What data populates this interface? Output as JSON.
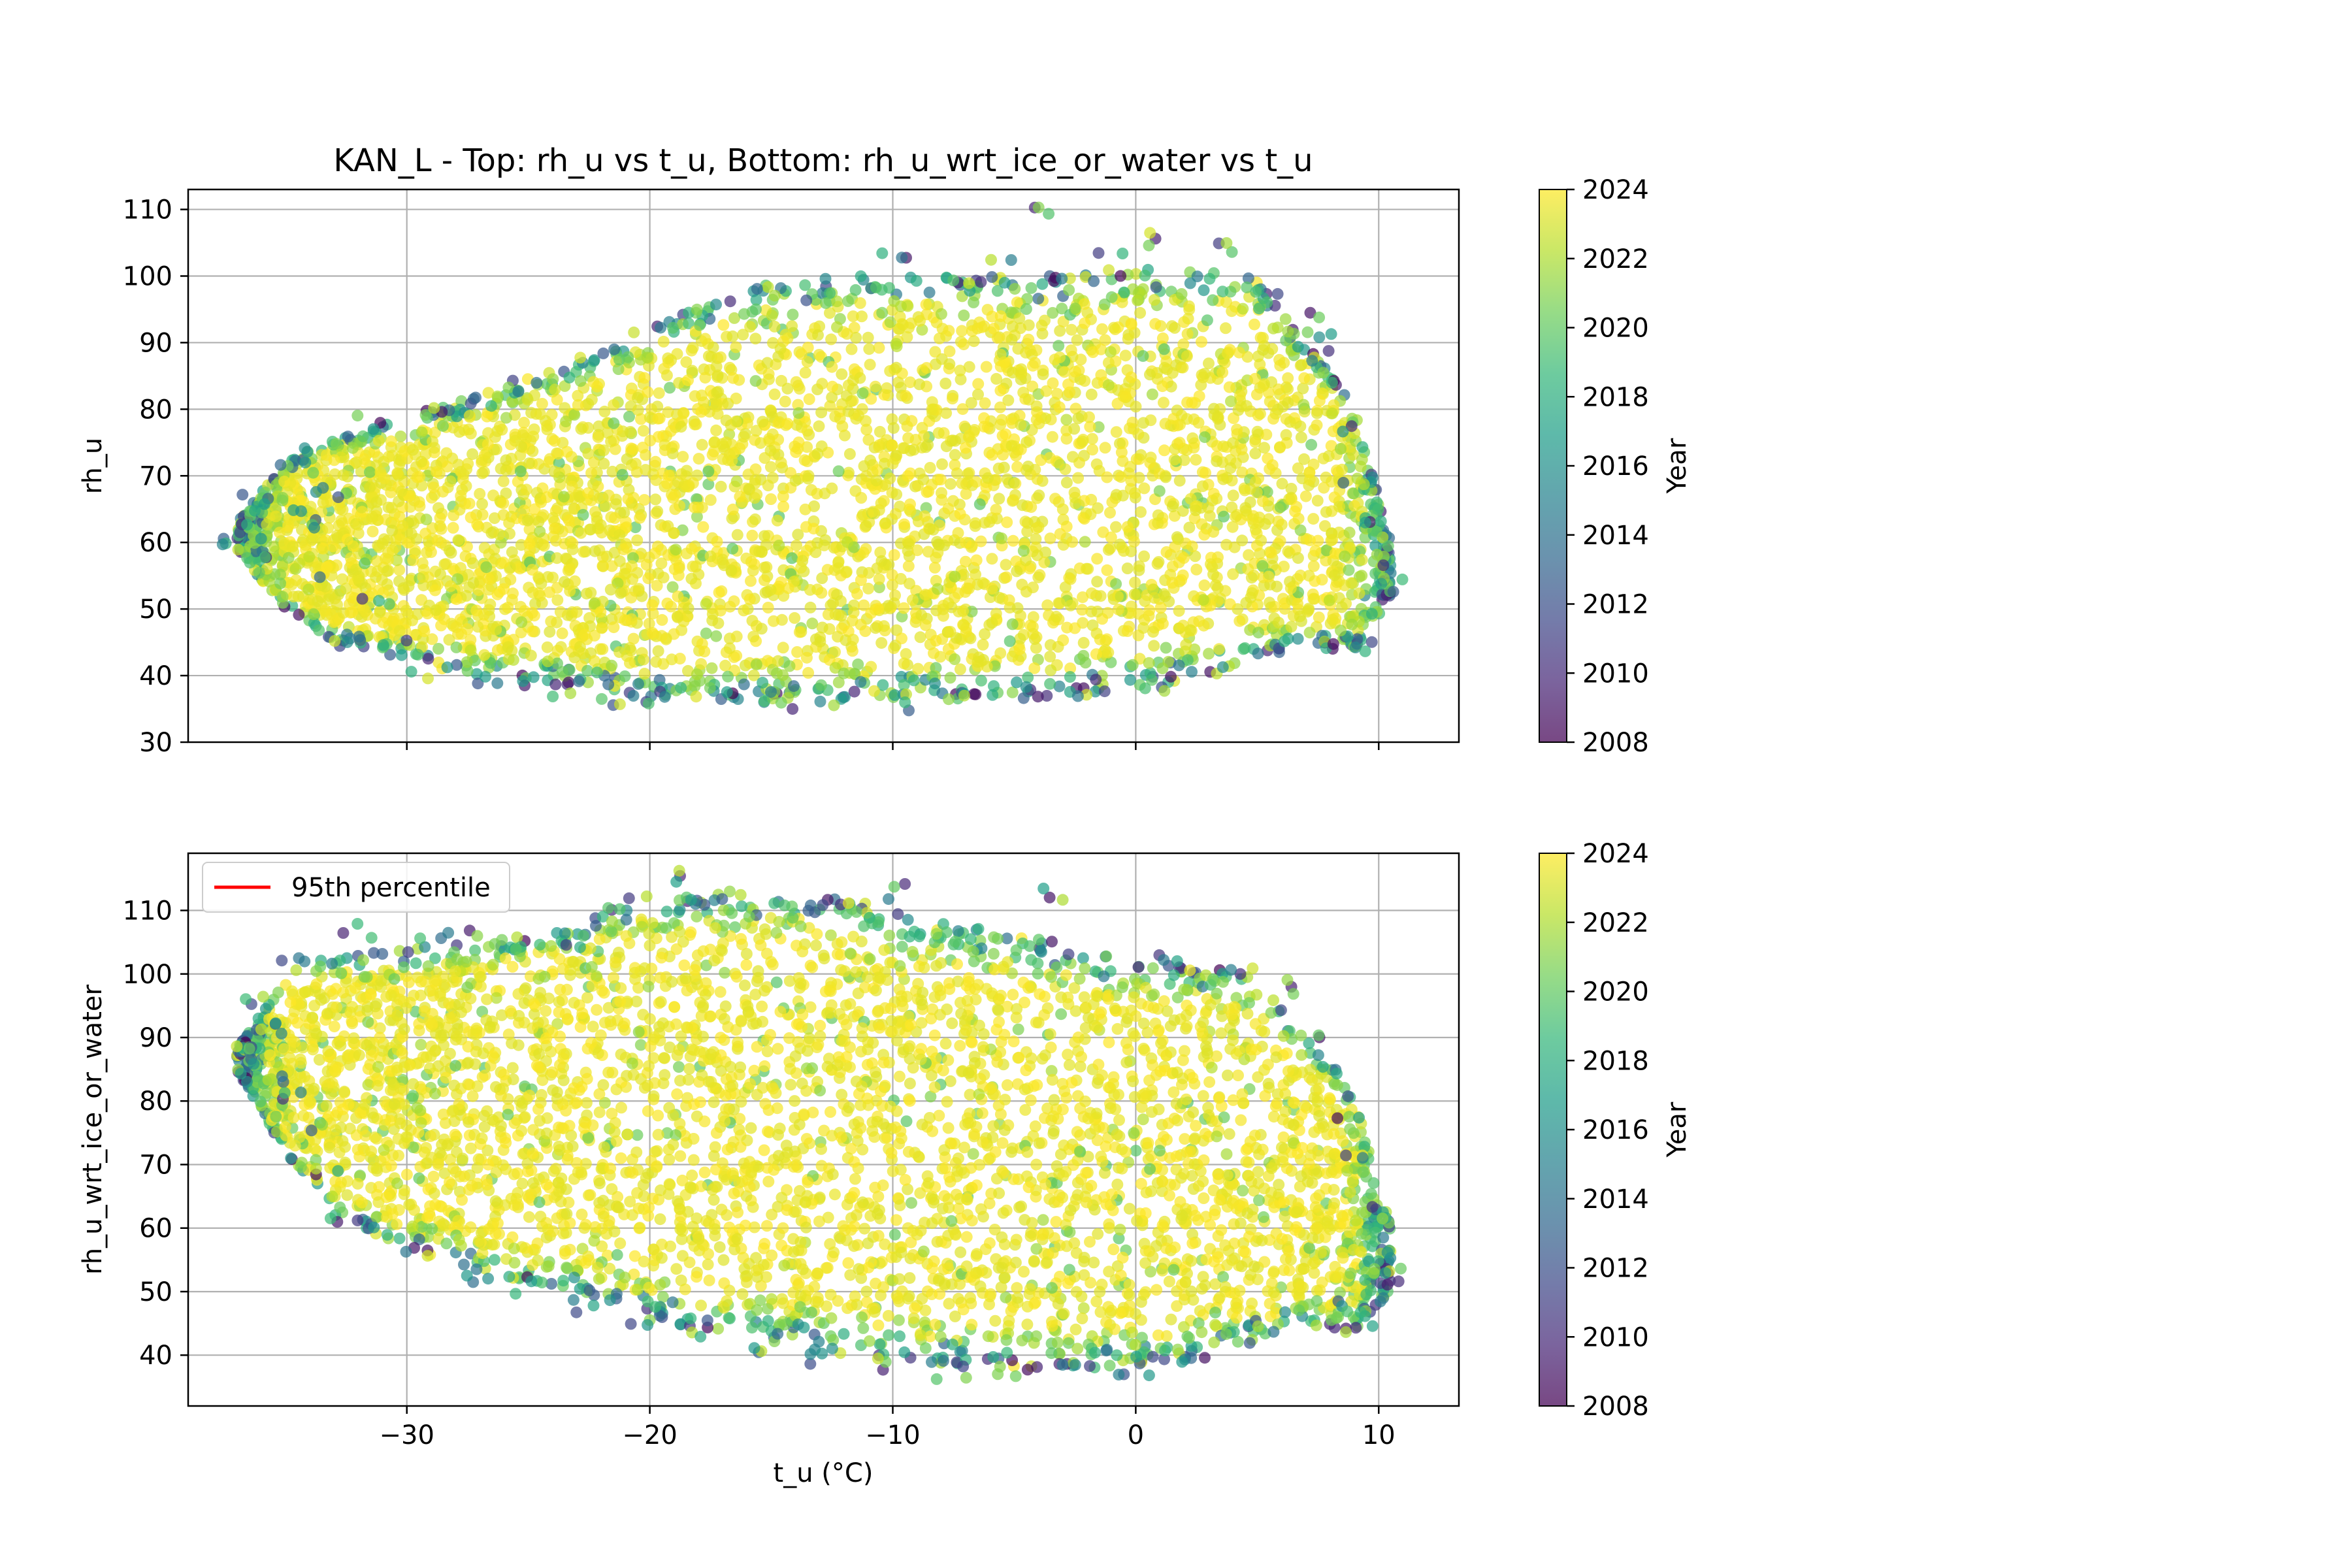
{
  "colormap": {
    "name": "viridis",
    "alpha": 0.7,
    "stops": [
      "#440154",
      "#482878",
      "#3e4989",
      "#31688e",
      "#26828e",
      "#1f9e89",
      "#35b779",
      "#6ece58",
      "#b5de2b",
      "#fde725"
    ]
  },
  "chart_data": [
    {
      "type": "scatter",
      "title": "KAN_L - Top: rh_u vs t_u, Bottom: rh_u_wrt_ice_or_water vs t_u",
      "xlabel": "",
      "ylabel": "rh_u",
      "xlim": [
        -39.0,
        13.3
      ],
      "ylim": [
        30,
        113
      ],
      "xticks": [
        -30,
        -20,
        -10,
        0,
        10
      ],
      "xtick_labels": [
        "",
        "",
        "",
        "",
        ""
      ],
      "yticks": [
        30,
        40,
        50,
        60,
        70,
        80,
        90,
        100,
        110
      ],
      "ytick_labels": [
        "30",
        "40",
        "50",
        "60",
        "70",
        "80",
        "90",
        "100",
        "110"
      ],
      "grid": true,
      "color_variable": "Year",
      "colorbar": {
        "label": "Year",
        "range": [
          2008,
          2024
        ],
        "ticks": [
          2008,
          2010,
          2012,
          2014,
          2016,
          2018,
          2020,
          2022,
          2024
        ],
        "tick_labels": [
          "2008",
          "2010",
          "2012",
          "2014",
          "2016",
          "2018",
          "2020",
          "2022",
          "2024"
        ]
      },
      "envelope_t": [
        -37,
        -35,
        -33,
        -30,
        -27,
        -24,
        -21,
        -18,
        -15,
        -12,
        -9,
        -6,
        -3,
        0,
        3,
        5,
        6.5,
        8,
        9,
        10.5
      ],
      "envelope_upper": [
        63,
        72,
        76,
        79,
        82,
        86,
        91,
        96,
        99,
        100,
        100,
        100,
        100,
        101,
        101,
        100,
        92,
        86,
        80,
        60
      ],
      "envelope_lower": [
        59,
        50,
        45,
        42,
        40,
        39,
        37,
        36,
        36,
        36,
        37,
        36,
        37,
        38,
        40,
        42,
        44,
        44,
        44,
        50
      ],
      "points": [
        [
          -37.2,
          61
        ],
        [
          -36.5,
          64
        ],
        [
          -35.8,
          58
        ],
        [
          -35.0,
          66
        ],
        [
          -34.4,
          62
        ],
        [
          -33.8,
          56
        ],
        [
          -33.2,
          68
        ],
        [
          -32.6,
          44
        ],
        [
          -32.0,
          46
        ],
        [
          -31.4,
          51
        ],
        [
          -30.5,
          44
        ],
        [
          -29.6,
          42
        ],
        [
          -28.4,
          41
        ],
        [
          -27.0,
          40
        ],
        [
          -25.2,
          39
        ],
        [
          -23.5,
          38
        ],
        [
          -21.8,
          37
        ],
        [
          -19.5,
          36
        ],
        [
          -17.0,
          37
        ],
        [
          -14.6,
          36
        ],
        [
          -12.0,
          37
        ],
        [
          -9.5,
          36
        ],
        [
          -7.0,
          37
        ],
        [
          -4.5,
          38
        ],
        [
          -2.0,
          38
        ],
        [
          0.5,
          39
        ],
        [
          3.0,
          40
        ],
        [
          5.6,
          45
        ],
        [
          8.2,
          46
        ],
        [
          9.3,
          44
        ],
        [
          10.4,
          53
        ],
        [
          9.8,
          63
        ],
        [
          9.1,
          69
        ],
        [
          8.7,
          78
        ],
        [
          8.3,
          84
        ],
        [
          7.8,
          90
        ],
        [
          7.2,
          93
        ],
        [
          5.4,
          96
        ],
        [
          3.4,
          104
        ],
        [
          1.2,
          106
        ],
        [
          -0.8,
          102
        ],
        [
          -3.5,
          109
        ],
        [
          -5.8,
          101
        ],
        [
          -9.8,
          103
        ],
        [
          -25.7,
          84
        ],
        [
          -29.0,
          79
        ],
        [
          -31.5,
          78
        ],
        [
          -34.8,
          73
        ],
        [
          -36.2,
          66
        ]
      ]
    },
    {
      "type": "scatter",
      "title": "",
      "xlabel": "t_u (°C)",
      "ylabel": "rh_u_wrt_ice_or_water",
      "xlim": [
        -39.0,
        13.3
      ],
      "ylim": [
        32,
        119
      ],
      "xticks": [
        -30,
        -20,
        -10,
        0,
        10
      ],
      "xtick_labels": [
        "−30",
        "−20",
        "−10",
        "0",
        "10"
      ],
      "yticks": [
        40,
        50,
        60,
        70,
        80,
        90,
        100,
        110
      ],
      "ytick_labels": [
        "40",
        "50",
        "60",
        "70",
        "80",
        "90",
        "100",
        "110"
      ],
      "grid": true,
      "legend": {
        "placement": "upper left",
        "entries": [
          {
            "label": "95th percentile",
            "color": "#ff0000"
          }
        ]
      },
      "color_variable": "Year",
      "colorbar": {
        "label": "Year",
        "range": [
          2008,
          2024
        ],
        "ticks": [
          2008,
          2010,
          2012,
          2014,
          2016,
          2018,
          2020,
          2022,
          2024
        ],
        "tick_labels": [
          "2008",
          "2010",
          "2012",
          "2014",
          "2016",
          "2018",
          "2020",
          "2022",
          "2024"
        ]
      },
      "envelope_t": [
        -37,
        -35,
        -33,
        -30,
        -27,
        -24,
        -21,
        -18,
        -15,
        -12,
        -9,
        -6,
        -3,
        0,
        3,
        5,
        6.5,
        8,
        9,
        10.5
      ],
      "envelope_upper": [
        88,
        100,
        103,
        104,
        105,
        107,
        112,
        113,
        113,
        112,
        109,
        107,
        104,
        102,
        101,
        100,
        92,
        86,
        80,
        60
      ],
      "envelope_lower": [
        85,
        72,
        62,
        57,
        53,
        50,
        47,
        44,
        42,
        40,
        39,
        38,
        38,
        38,
        40,
        42,
        44,
        44,
        44,
        50
      ],
      "points": [
        [
          -37.0,
          87
        ],
        [
          -36.4,
          90
        ],
        [
          -35.8,
          84
        ],
        [
          -35.1,
          92
        ],
        [
          -34.5,
          80
        ],
        [
          -33.8,
          76
        ],
        [
          -33.1,
          69
        ],
        [
          -32.5,
          62
        ],
        [
          -31.2,
          59
        ],
        [
          -29.5,
          57
        ],
        [
          -27.3,
          53
        ],
        [
          -25.0,
          51
        ],
        [
          -22.8,
          48
        ],
        [
          -20.5,
          46
        ],
        [
          -18.0,
          44
        ],
        [
          -15.5,
          41
        ],
        [
          -12.8,
          40
        ],
        [
          -10.2,
          38
        ],
        [
          -7.6,
          37
        ],
        [
          -5.0,
          38
        ],
        [
          -2.5,
          37
        ],
        [
          0.0,
          38
        ],
        [
          2.5,
          39
        ],
        [
          5.5,
          46
        ],
        [
          8.0,
          47
        ],
        [
          9.3,
          44
        ],
        [
          10.5,
          53
        ],
        [
          9.7,
          63
        ],
        [
          9.1,
          70
        ],
        [
          8.6,
          77
        ],
        [
          8.1,
          84
        ],
        [
          7.5,
          89
        ],
        [
          6.1,
          98
        ],
        [
          4.2,
          101
        ],
        [
          1.2,
          103
        ],
        [
          -3.5,
          104
        ],
        [
          -3.4,
          112
        ],
        [
          -10.0,
          113
        ],
        [
          -19.2,
          115
        ],
        [
          -23.5,
          105
        ],
        [
          -26.8,
          106
        ],
        [
          -28.8,
          106
        ],
        [
          -32.0,
          107
        ],
        [
          -34.6,
          103
        ],
        [
          -36.2,
          96
        ]
      ]
    }
  ]
}
